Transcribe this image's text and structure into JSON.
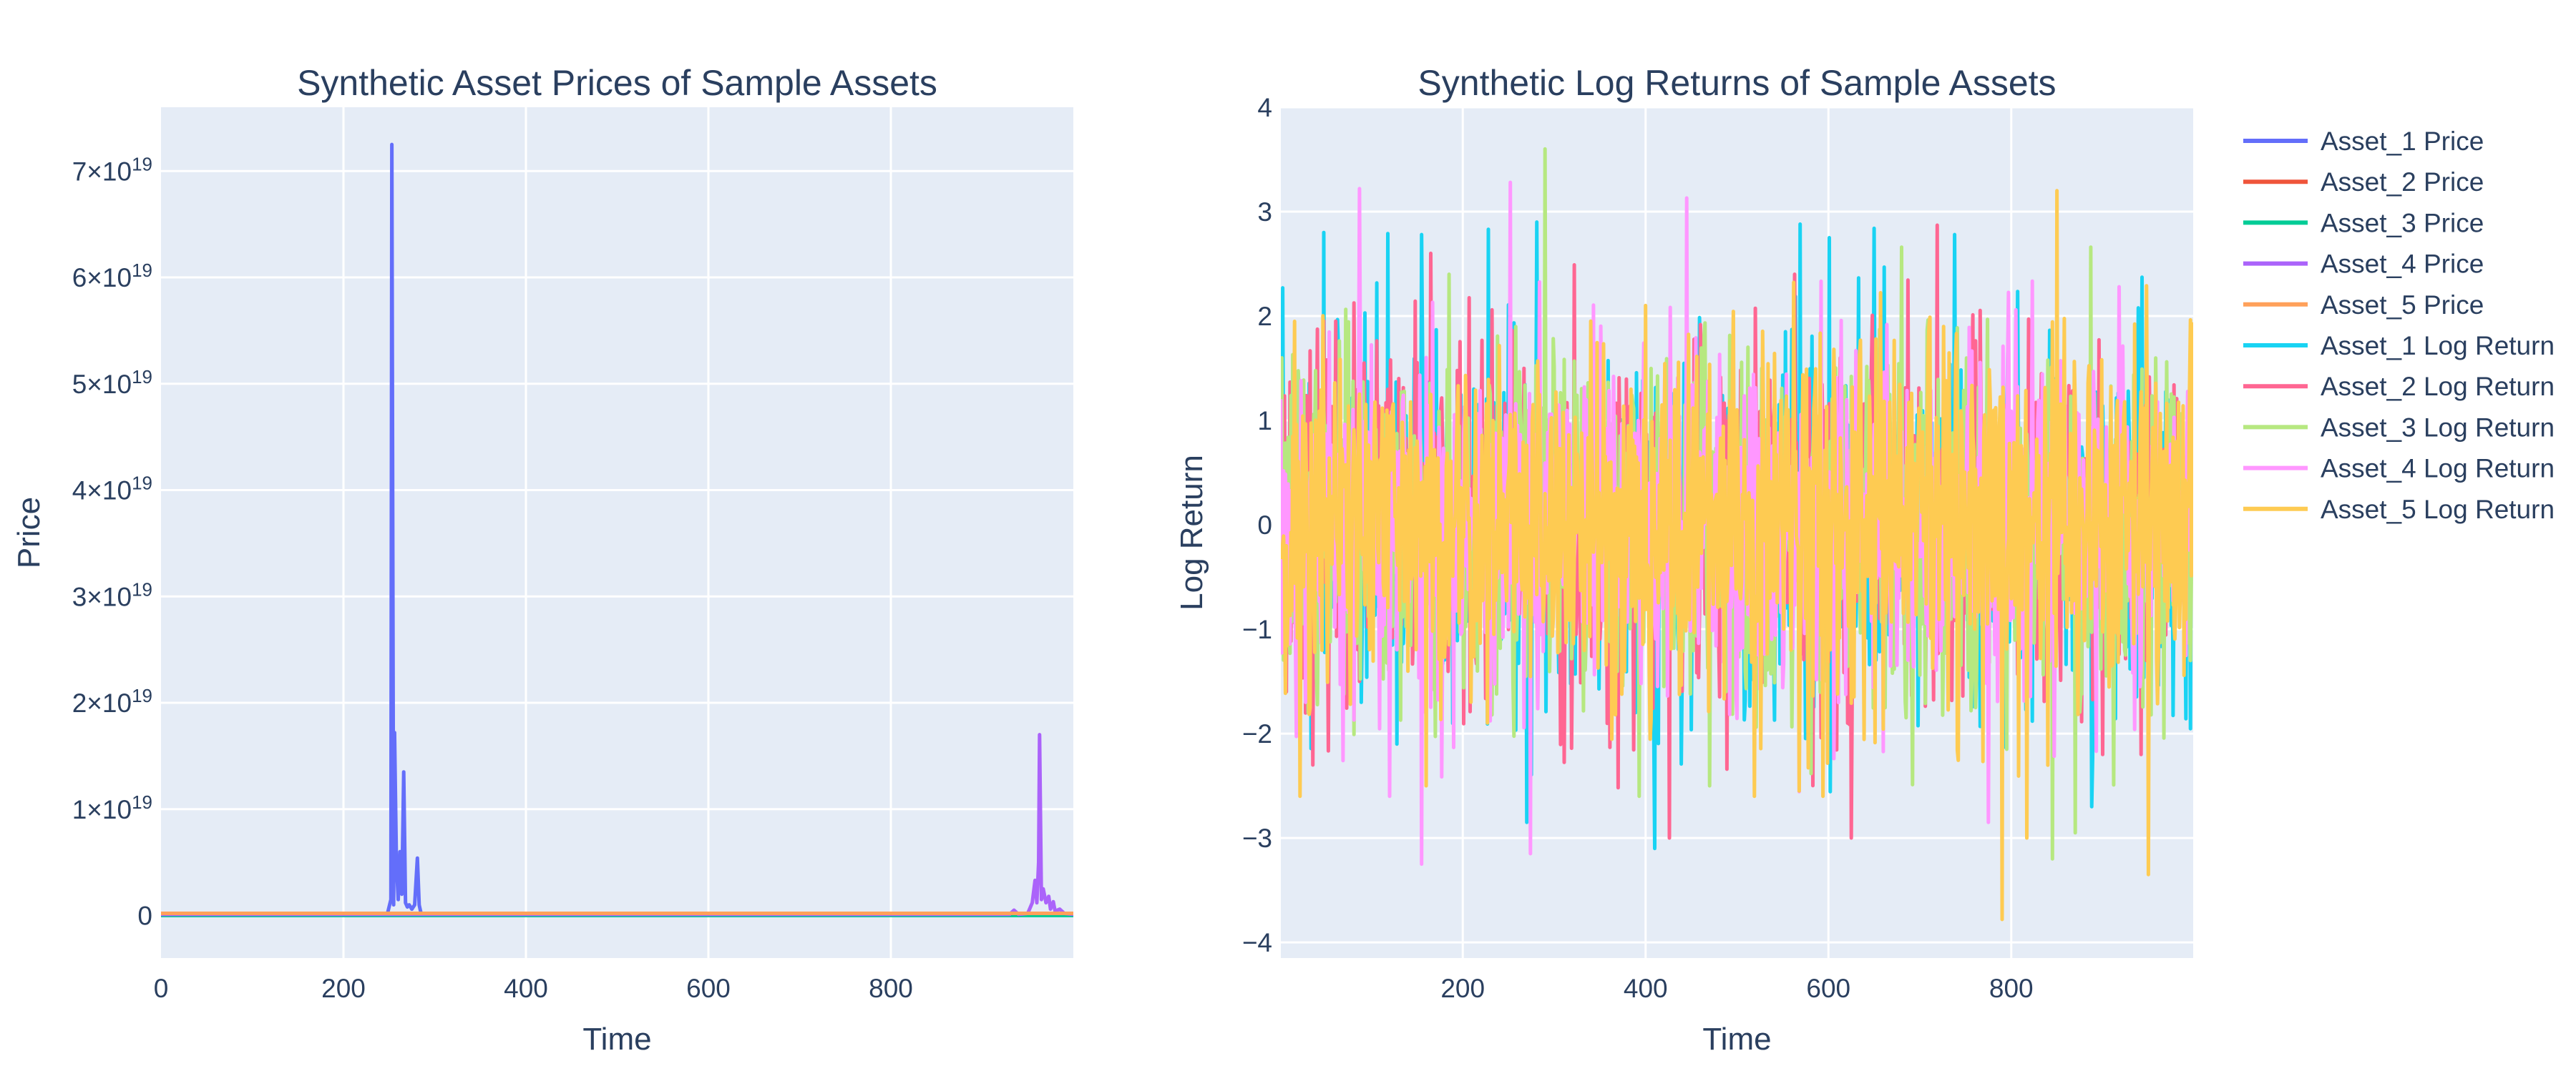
{
  "colors": {
    "plot_background": "#E5ECF6",
    "text": "#2a3f5f",
    "grid": "#ffffff"
  },
  "chart_data": [
    {
      "type": "line",
      "title": "Synthetic Asset Prices of Sample Assets",
      "xlabel": "Time",
      "ylabel": "Price",
      "xlim": [
        0,
        1000
      ],
      "ylim": [
        -4e+18,
        7.6e+19
      ],
      "x_ticks": [
        0,
        200,
        400,
        600,
        800
      ],
      "x_tick_labels": [
        "0",
        "200",
        "400",
        "600",
        "800"
      ],
      "y_ticks": [
        0,
        1e+19,
        2e+19,
        3e+19,
        4e+19,
        5e+19,
        6e+19,
        7e+19
      ],
      "y_tick_labels": [
        {
          "base": "0",
          "exp": ""
        },
        {
          "base": "1×10",
          "exp": "19"
        },
        {
          "base": "2×10",
          "exp": "19"
        },
        {
          "base": "3×10",
          "exp": "19"
        },
        {
          "base": "4×10",
          "exp": "19"
        },
        {
          "base": "5×10",
          "exp": "19"
        },
        {
          "base": "6×10",
          "exp": "19"
        },
        {
          "base": "7×10",
          "exp": "19"
        }
      ],
      "grid": true,
      "series": [
        {
          "name": "Asset_1 Price",
          "color": "#636EFA",
          "x": [
            0,
            248,
            252,
            253,
            255,
            256,
            258,
            260,
            262,
            264,
            266,
            268,
            270,
            272,
            275,
            278,
            281,
            283,
            285,
            290,
            1000
          ],
          "y": [
            1e+17,
            1e+17,
            1.5e+18,
            7.25e+19,
            1e+18,
            1.72e+19,
            5e+18,
            1.5e+18,
            6e+18,
            2e+18,
            1.35e+19,
            1.2e+18,
            8e+17,
            1e+18,
            6e+17,
            1e+18,
            5.4e+18,
            1e+18,
            2e+17,
            1e+17,
            1e+17
          ]
        },
        {
          "name": "Asset_2 Price",
          "color": "#EF553B",
          "x": [
            0,
            1000
          ],
          "y": [
            0,
            0
          ]
        },
        {
          "name": "Asset_3 Price",
          "color": "#00CC96",
          "x": [
            0,
            1000
          ],
          "y": [
            0,
            0
          ]
        },
        {
          "name": "Asset_4 Price",
          "color": "#AB63FA",
          "x": [
            0,
            930,
            935,
            940,
            950,
            955,
            958,
            960,
            962,
            963,
            965,
            967,
            970,
            973,
            975,
            978,
            980,
            985,
            990,
            1000
          ],
          "y": [
            1e+17,
            1e+17,
            5e+17,
            1e+17,
            2e+17,
            1.2e+18,
            3.3e+18,
            1.2e+18,
            5e+18,
            1.7e+19,
            1.5e+18,
            2.5e+18,
            1.2e+18,
            1.8e+18,
            6e+17,
            1.3e+18,
            4e+17,
            6e+17,
            2e+17,
            1e+17
          ]
        },
        {
          "name": "Asset_5 Price",
          "color": "#FFA15A",
          "x": [
            0,
            1000
          ],
          "y": [
            2e+17,
            2e+17
          ]
        }
      ]
    },
    {
      "type": "line",
      "title": "Synthetic Log Returns of Sample Assets",
      "xlabel": "Time",
      "ylabel": "Log Return",
      "xlim": [
        1,
        999
      ],
      "ylim": [
        -4.15,
        4.0
      ],
      "x_ticks": [
        200,
        400,
        600,
        800
      ],
      "x_tick_labels": [
        "200",
        "400",
        "600",
        "800"
      ],
      "y_ticks": [
        -4,
        -3,
        -2,
        -1,
        0,
        1,
        2,
        3,
        4
      ],
      "y_tick_labels": [
        "−4",
        "−3",
        "−2",
        "−1",
        "0",
        "1",
        "2",
        "3",
        "4"
      ],
      "grid": true,
      "series": [
        {
          "name": "Asset_1 Log Return",
          "color": "#19D3F3",
          "x": [
            1,
            999
          ],
          "y": [
            0,
            0
          ],
          "noise_sd": 0.85,
          "seed": 11,
          "spikes": [
            [
              3,
              2.27
            ],
            [
              48,
              2.8
            ],
            [
              118,
              2.79
            ],
            [
              155,
              2.78
            ],
            [
              228,
              2.83
            ],
            [
              281,
              2.9
            ],
            [
              410,
              -3.1
            ],
            [
              569,
              2.88
            ],
            [
              601,
              2.75
            ],
            [
              650,
              2.84
            ],
            [
              738,
              2.78
            ],
            [
              888,
              -2.7
            ],
            [
              797,
              2.0
            ],
            [
              270,
              -2.85
            ]
          ]
        },
        {
          "name": "Asset_2 Log Return",
          "color": "#FF6692",
          "x": [
            1,
            999
          ],
          "y": [
            0,
            0
          ],
          "noise_sd": 0.85,
          "seed": 23,
          "spikes": [
            [
              7,
              -1.6
            ],
            [
              322,
              2.49
            ],
            [
              426,
              -3.0
            ],
            [
              563,
              2.4
            ],
            [
              625,
              -3.0
            ],
            [
              719,
              2.87
            ],
            [
              900,
              -2.2
            ],
            [
              942,
              -2.2
            ]
          ]
        },
        {
          "name": "Asset_3 Log Return",
          "color": "#B6E880",
          "x": [
            1,
            999
          ],
          "y": [
            0,
            0
          ],
          "noise_sd": 0.85,
          "seed": 37,
          "spikes": [
            [
              290,
              3.6
            ],
            [
              185,
              2.4
            ],
            [
              470,
              -2.5
            ],
            [
              680,
              2.66
            ],
            [
              795,
              -2.15
            ],
            [
              845,
              -3.2
            ],
            [
              887,
              2.66
            ],
            [
              870,
              -2.95
            ]
          ]
        },
        {
          "name": "Asset_4 Log Return",
          "color": "#FF97FF",
          "x": [
            1,
            999
          ],
          "y": [
            0,
            0
          ],
          "noise_sd": 0.85,
          "seed": 53,
          "spikes": [
            [
              87,
              3.22
            ],
            [
              155,
              -3.25
            ],
            [
              252,
              3.28
            ],
            [
              274,
              -3.15
            ],
            [
              445,
              3.13
            ],
            [
              775,
              -2.85
            ],
            [
              918,
              2.28
            ],
            [
              120,
              -2.6
            ]
          ]
        },
        {
          "name": "Asset_5 Log Return",
          "color": "#FECB52",
          "x": [
            1,
            999
          ],
          "y": [
            0,
            0
          ],
          "noise_sd": 0.85,
          "seed": 71,
          "spikes": [
            [
              22,
              -2.6
            ],
            [
              160,
              -2.5
            ],
            [
              790,
              -3.78
            ],
            [
              817,
              -3.0
            ],
            [
              850,
              3.2
            ],
            [
              950,
              -3.35
            ],
            [
              519,
              -2.6
            ],
            [
              568,
              -2.55
            ],
            [
              400,
              2.1
            ],
            [
              340,
              1.95
            ]
          ]
        }
      ]
    }
  ],
  "legend": {
    "placement": "right",
    "entries": [
      {
        "label": "Asset_1 Price",
        "color": "#636EFA"
      },
      {
        "label": "Asset_2 Price",
        "color": "#EF553B"
      },
      {
        "label": "Asset_3 Price",
        "color": "#00CC96"
      },
      {
        "label": "Asset_4 Price",
        "color": "#AB63FA"
      },
      {
        "label": "Asset_5 Price",
        "color": "#FFA15A"
      },
      {
        "label": "Asset_1 Log Return",
        "color": "#19D3F3"
      },
      {
        "label": "Asset_2 Log Return",
        "color": "#FF6692"
      },
      {
        "label": "Asset_3 Log Return",
        "color": "#B6E880"
      },
      {
        "label": "Asset_4 Log Return",
        "color": "#FF97FF"
      },
      {
        "label": "Asset_5 Log Return",
        "color": "#FECB52"
      }
    ]
  }
}
